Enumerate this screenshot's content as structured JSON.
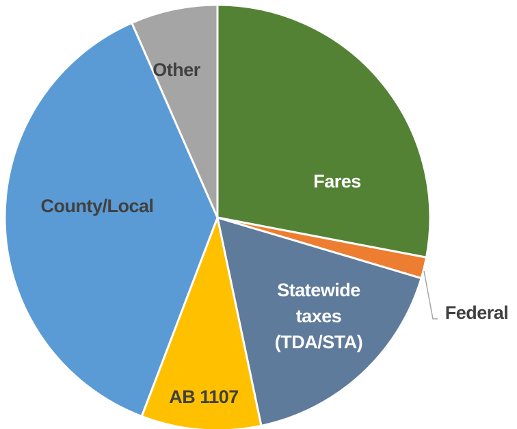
{
  "chart_data": {
    "type": "pie",
    "categories": [
      "Fares",
      "Federal",
      "Statewide taxes (TDA/STA)",
      "AB 1107",
      "County/Local",
      "Other"
    ],
    "values": [
      28,
      1.6,
      17.1,
      9.1,
      37.6,
      6.6
    ],
    "colors": [
      "#548235",
      "#ed7d31",
      "#5f7b9b",
      "#ffc000",
      "#5b9bd5",
      "#a5a5a5"
    ],
    "label_colors": [
      "#ffffff",
      "#404040",
      "#ffffff",
      "#404040",
      "#404040",
      "#404040"
    ]
  }
}
